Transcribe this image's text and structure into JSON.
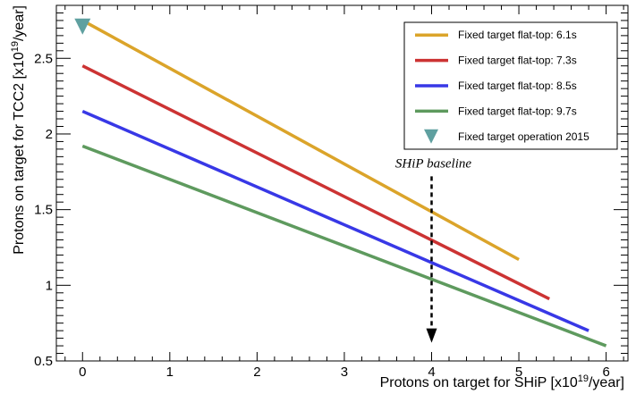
{
  "chart_data": {
    "type": "line",
    "xlabel": "Protons on target for SHiP [x10^{19}/year]",
    "xlabel_parts": {
      "main": "Protons on target for SHiP [x10",
      "sup": "19",
      "tail": "/year]"
    },
    "ylabel": "Protons on target for TCC2 [x10^{19}/year]",
    "ylabel_parts": {
      "main": "Protons on target for TCC2 [x10",
      "sup": "19",
      "tail": "/year]"
    },
    "xlim": [
      -0.3,
      6.25
    ],
    "ylim": [
      0.5,
      2.85
    ],
    "x_ticks": [
      0,
      1,
      2,
      3,
      4,
      5,
      6
    ],
    "x_tick_labels": [
      "0",
      "1",
      "2",
      "3",
      "4",
      "5",
      "6"
    ],
    "y_ticks": [
      0.5,
      1,
      1.5,
      2,
      2.5
    ],
    "y_tick_labels": [
      "0.5",
      "1",
      "1.5",
      "2",
      "2.5"
    ],
    "grid": false,
    "legend_position": "top-right",
    "series": [
      {
        "name": "Fixed target flat-top: 6.1s",
        "color": "#dba42a",
        "x": [
          0,
          5.0
        ],
        "y": [
          2.75,
          1.17
        ]
      },
      {
        "name": "Fixed target flat-top: 7.3s",
        "color": "#cc3333",
        "x": [
          0,
          5.35
        ],
        "y": [
          2.45,
          0.91
        ]
      },
      {
        "name": "Fixed target flat-top: 8.5s",
        "color": "#3838e6",
        "x": [
          0,
          5.8
        ],
        "y": [
          2.15,
          0.7
        ]
      },
      {
        "name": "Fixed target flat-top: 9.7s",
        "color": "#5e9a5e",
        "x": [
          0,
          6.0
        ],
        "y": [
          1.92,
          0.6
        ]
      }
    ],
    "markers": [
      {
        "name": "Fixed target operation 2015",
        "color": "#5fa0a0",
        "shape": "triangle-down",
        "x": 0,
        "y": 2.71
      }
    ],
    "annotations": [
      {
        "text": "SHiP baseline",
        "x": 4.0,
        "y_from": 1.72,
        "y_to": 0.62
      }
    ]
  }
}
